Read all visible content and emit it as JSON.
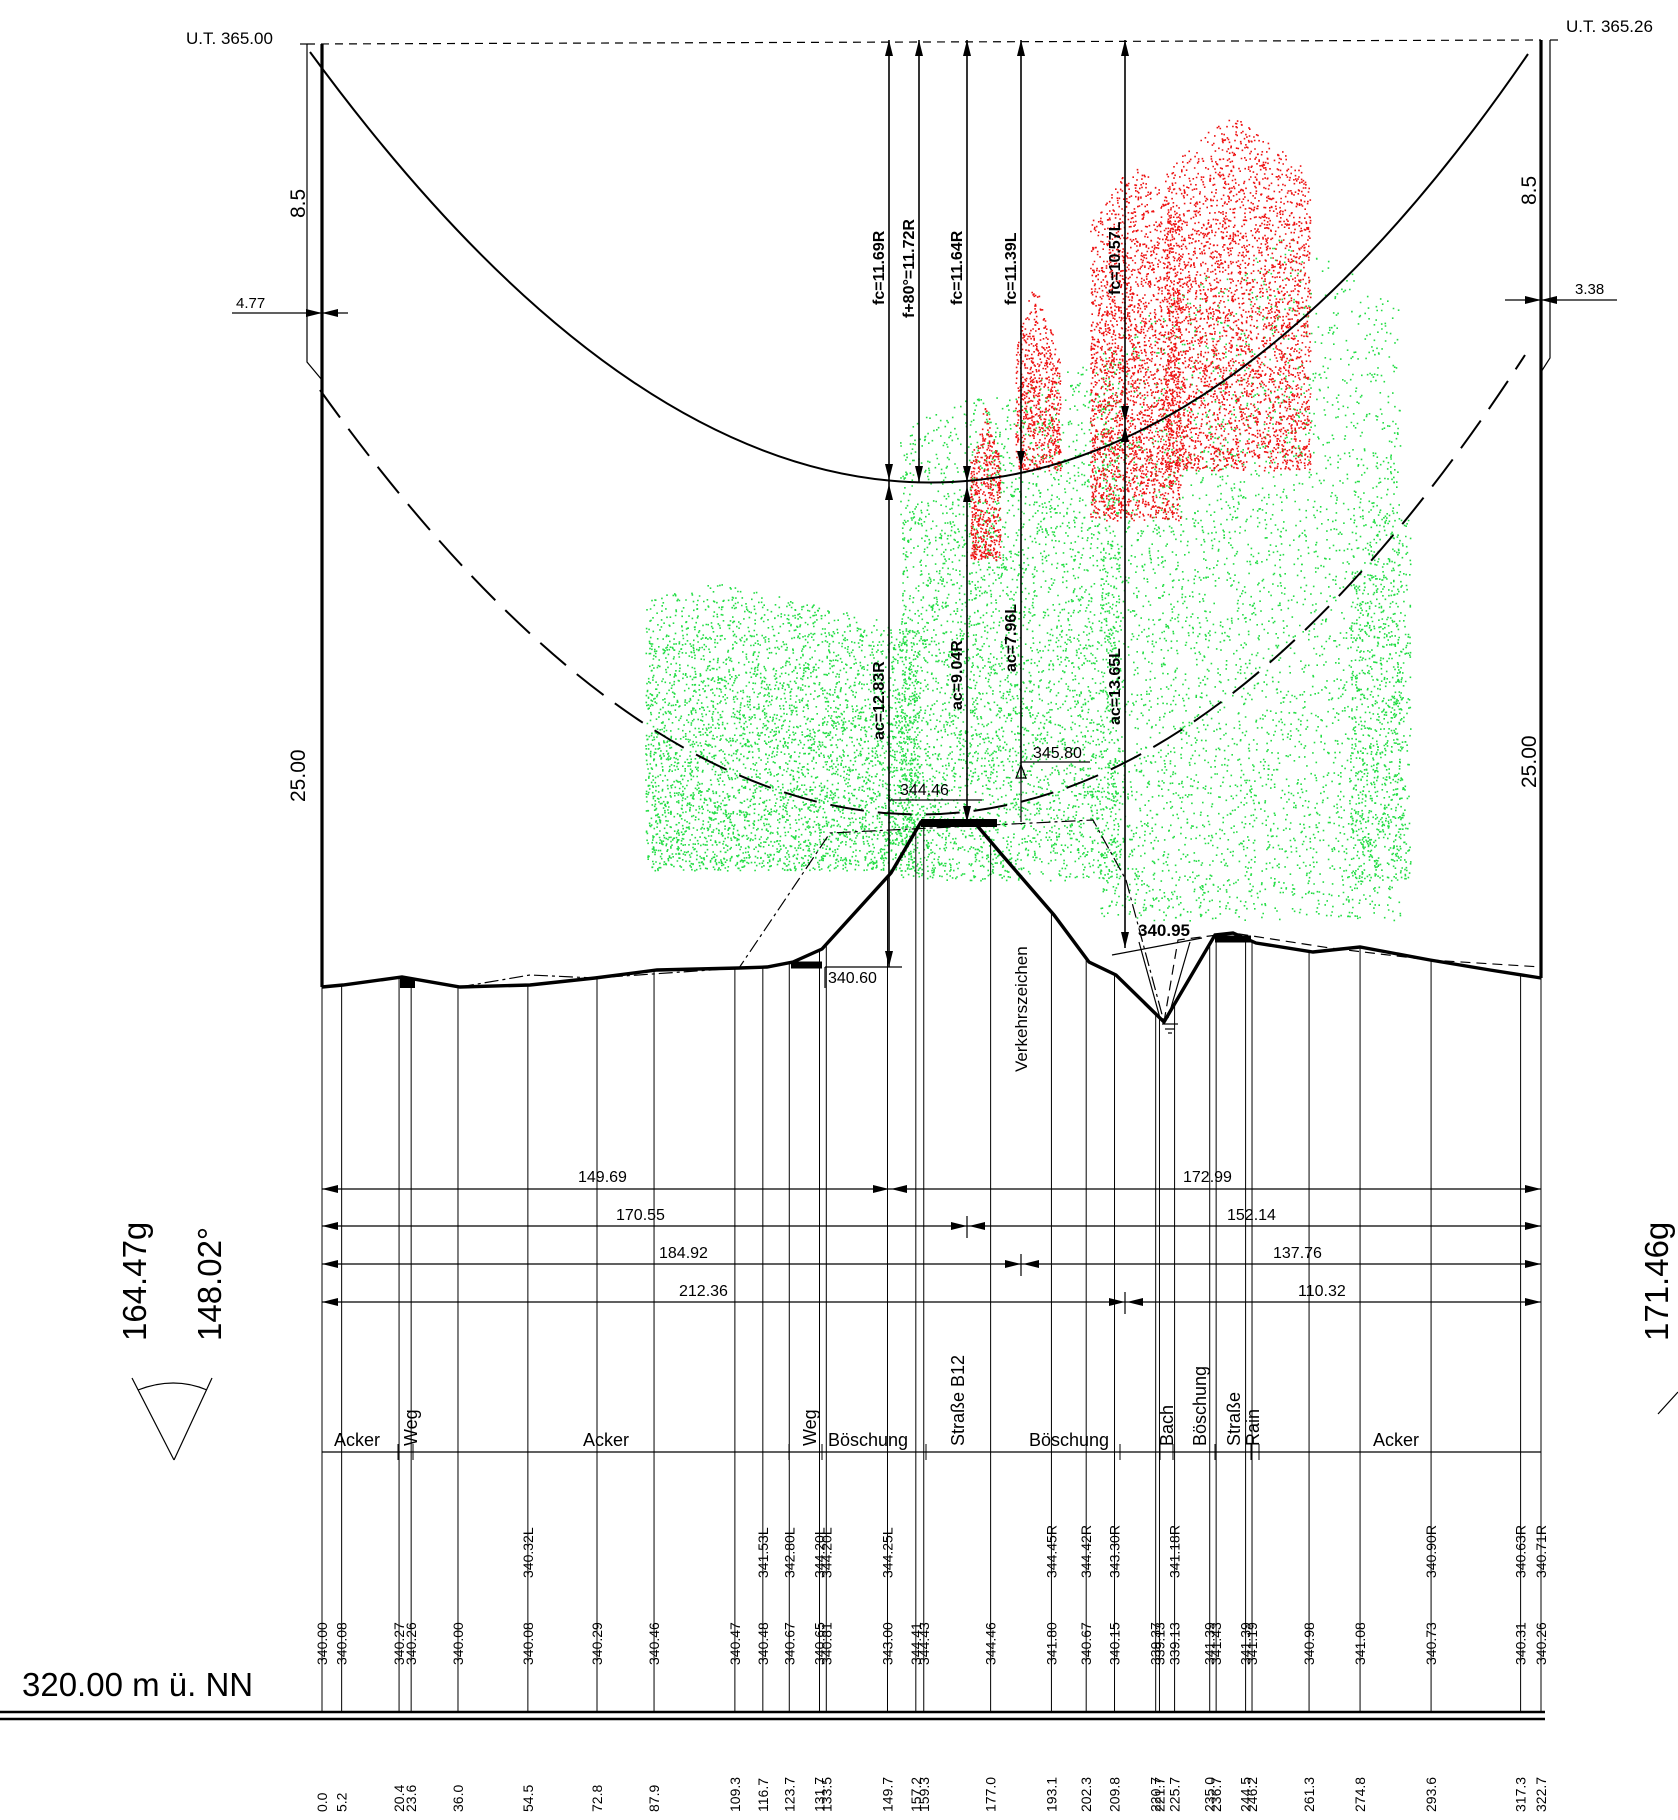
{
  "corridor": {
    "left_top": "U.T. 365.00",
    "right_top": "U.T. 365.26",
    "left_offset": "8.5",
    "right_offset": "8.5",
    "left_height": "25.00",
    "right_height": "25.00",
    "left_clearance": "4.77",
    "right_clearance": "3.38"
  },
  "sag_labels": [
    "fc=11.69R",
    "f+80°=11.72R",
    "fc=11.64R",
    "fc=11.39L",
    "fc=10.57L"
  ],
  "clearance_labels": [
    "ac=12.83R",
    "ac=9.04R",
    "ac=7.96L",
    "ac=13.65L"
  ],
  "elevations": {
    "road_edge": "344.46",
    "sign_top": "345.80",
    "left_toe": "340.60",
    "creek_bank": "340.95"
  },
  "sign_label": "Verkehrszeichen",
  "span_dims": [
    {
      "left": "149.69",
      "right": "172.99"
    },
    {
      "left": "170.55",
      "right": "152.14"
    },
    {
      "left": "184.92",
      "right": "137.76"
    },
    {
      "left": "212.36",
      "right": "110.32"
    }
  ],
  "left_angle": {
    "grad": "164.47g",
    "deg": "148.02°"
  },
  "right_angle": {
    "grad": "171.46g"
  },
  "land_use": [
    "Acker",
    "Weg",
    "Acker",
    "Weg",
    "Böschung",
    "Straße B12",
    "Böschung",
    "Bach",
    "Böschung",
    "Straße",
    "Rain",
    "Acker"
  ],
  "datum": "320.00 m ü. NN",
  "stations": [
    {
      "dist": "0.0",
      "elev": "340.00"
    },
    {
      "dist": "5.2",
      "elev": "340.08"
    },
    {
      "dist": "20.4",
      "elev": "340.27"
    },
    {
      "dist": "23.6",
      "elev": "340.26"
    },
    {
      "dist": "36.0",
      "elev": "340.00"
    },
    {
      "dist": "54.5",
      "elev": "340.08",
      "obj": "340.32L"
    },
    {
      "dist": "72.8",
      "elev": "340.29"
    },
    {
      "dist": "87.9",
      "elev": "340.46"
    },
    {
      "dist": "109.3",
      "elev": "340.47"
    },
    {
      "dist": "116.7",
      "elev": "340.48",
      "obj": "341.53L"
    },
    {
      "dist": "123.7",
      "elev": "340.67",
      "obj": "342.80L"
    },
    {
      "dist": "131.7",
      "elev": "340.65",
      "obj": "344.20L"
    },
    {
      "dist": "133.5",
      "elev": "340.81",
      "obj": "344.20L"
    },
    {
      "dist": "149.7",
      "elev": "343.00",
      "obj": "344.25L"
    },
    {
      "dist": "157.2",
      "elev": "344.41"
    },
    {
      "dist": "159.3",
      "elev": "344.43"
    },
    {
      "dist": "177.0",
      "elev": "344.46"
    },
    {
      "dist": "193.1",
      "elev": "341.80",
      "obj": "344.45R"
    },
    {
      "dist": "202.3",
      "elev": "340.67",
      "obj": "344.42R"
    },
    {
      "dist": "209.8",
      "elev": "340.15",
      "obj": "343.30R"
    },
    {
      "dist": "220.7",
      "elev": "339.37"
    },
    {
      "dist": "221.7",
      "elev": "339.13"
    },
    {
      "dist": "225.7",
      "elev": "339.13",
      "obj": "341.18R"
    },
    {
      "dist": "235.0",
      "elev": "341.39"
    },
    {
      "dist": "236.7",
      "elev": "341.43"
    },
    {
      "dist": "244.5",
      "elev": "341.39"
    },
    {
      "dist": "246.2",
      "elev": "341.19"
    },
    {
      "dist": "261.3",
      "elev": "340.98"
    },
    {
      "dist": "274.8",
      "elev": "341.08"
    },
    {
      "dist": "293.6",
      "elev": "340.73",
      "obj": "340.90R"
    },
    {
      "dist": "317.3",
      "elev": "340.31",
      "obj": "340.63R"
    },
    {
      "dist": "322.7",
      "elev": "340.26",
      "obj": "340.71R"
    }
  ],
  "colors": {
    "vegetation_ok": "#22dd44",
    "vegetation_conflict": "#ee1111"
  }
}
